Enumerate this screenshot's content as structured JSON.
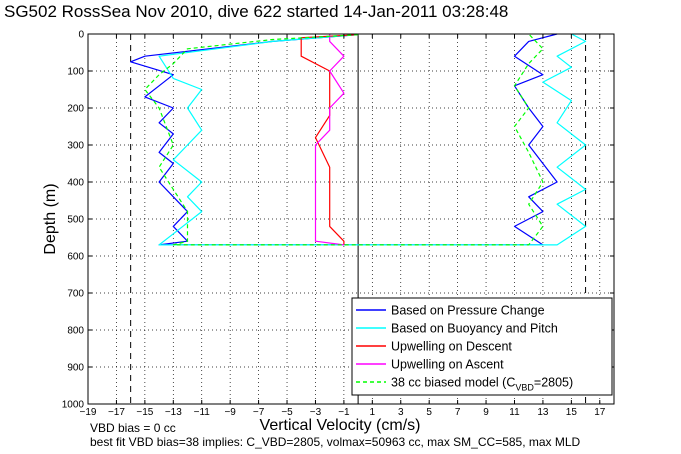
{
  "chart_data": {
    "type": "line",
    "title": "SG502 RossSea Nov 2010, dive 622 started 14-Jan-2011 03:28:48",
    "xlabel": "Vertical Velocity (cm/s)",
    "ylabel": "Depth (m)",
    "xlim": [
      -19,
      18
    ],
    "ylim": [
      0,
      1000
    ],
    "y_reversed": true,
    "grid": true,
    "x_ticks": [
      -19,
      -17,
      -15,
      -13,
      -11,
      -9,
      -7,
      -5,
      -3,
      -1,
      1,
      3,
      5,
      7,
      9,
      11,
      13,
      15,
      17
    ],
    "y_ticks": [
      0,
      100,
      200,
      300,
      400,
      500,
      600,
      700,
      800,
      900,
      1000
    ],
    "vertical_dashed_lines": [
      -16,
      16
    ],
    "vertical_solid_line": 0,
    "legend_position": "bottom-right",
    "legend": [
      {
        "label": "Based on Pressure Change",
        "color": "#0000ff",
        "style": "solid"
      },
      {
        "label": "Based on Buoyancy and Pitch",
        "color": "#00ffff",
        "style": "solid"
      },
      {
        "label": "Upwelling on Descent",
        "color": "#ff0000",
        "style": "solid"
      },
      {
        "label": "Upwelling on Ascent",
        "color": "#ff00ff",
        "style": "solid"
      },
      {
        "label_pre": "38 cc biased model (C",
        "label_sub": "VBD",
        "label_post": "=2805)",
        "color": "#00ff00",
        "style": "dashed"
      }
    ],
    "series": [
      {
        "name": "Based on Pressure Change",
        "color": "#0000ff",
        "points": [
          [
            0,
            2
          ],
          [
            -6,
            20
          ],
          [
            -15,
            60
          ],
          [
            -16,
            75
          ],
          [
            -13,
            110
          ],
          [
            -14,
            140
          ],
          [
            -15,
            170
          ],
          [
            -13,
            200
          ],
          [
            -14,
            240
          ],
          [
            -13,
            270
          ],
          [
            -14,
            320
          ],
          [
            -13,
            350
          ],
          [
            -14,
            400
          ],
          [
            -13,
            440
          ],
          [
            -12,
            480
          ],
          [
            -13,
            520
          ],
          [
            -12,
            560
          ],
          [
            -14,
            570
          ],
          [
            13,
            570
          ],
          [
            11,
            520
          ],
          [
            13,
            480
          ],
          [
            12,
            440
          ],
          [
            14,
            400
          ],
          [
            13,
            350
          ],
          [
            12,
            300
          ],
          [
            13,
            250
          ],
          [
            12,
            200
          ],
          [
            11,
            140
          ],
          [
            13,
            110
          ],
          [
            11,
            60
          ],
          [
            12,
            20
          ],
          [
            14,
            0
          ]
        ]
      },
      {
        "name": "Based on Buoyancy and Pitch",
        "color": "#00ffff",
        "points": [
          [
            0,
            2
          ],
          [
            -6,
            20
          ],
          [
            -14,
            60
          ],
          [
            -13,
            120
          ],
          [
            -11,
            150
          ],
          [
            -12,
            200
          ],
          [
            -11,
            260
          ],
          [
            -12,
            300
          ],
          [
            -13,
            340
          ],
          [
            -11,
            400
          ],
          [
            -12,
            440
          ],
          [
            -11,
            480
          ],
          [
            -13,
            540
          ],
          [
            -14,
            570
          ],
          [
            14,
            570
          ],
          [
            16,
            520
          ],
          [
            14,
            460
          ],
          [
            16,
            420
          ],
          [
            14,
            360
          ],
          [
            16,
            300
          ],
          [
            14,
            240
          ],
          [
            15,
            180
          ],
          [
            13,
            130
          ],
          [
            15,
            90
          ],
          [
            14,
            60
          ],
          [
            16,
            20
          ],
          [
            15,
            0
          ]
        ]
      },
      {
        "name": "Upwelling on Descent",
        "color": "#ff0000",
        "points": [
          [
            0,
            2
          ],
          [
            -4,
            10
          ],
          [
            -4,
            60
          ],
          [
            -2,
            100
          ],
          [
            -2,
            160
          ],
          [
            -2,
            220
          ],
          [
            -3,
            280
          ],
          [
            -2,
            360
          ],
          [
            -2,
            440
          ],
          [
            -2,
            520
          ],
          [
            -1,
            560
          ],
          [
            -1,
            570
          ]
        ]
      },
      {
        "name": "Upwelling on Ascent",
        "color": "#ff00ff",
        "points": [
          [
            -1,
            570
          ],
          [
            -3,
            560
          ],
          [
            -3,
            500
          ],
          [
            -3,
            440
          ],
          [
            -3,
            360
          ],
          [
            -3,
            300
          ],
          [
            -2,
            260
          ],
          [
            -2,
            200
          ],
          [
            -1,
            160
          ],
          [
            -2,
            100
          ],
          [
            -1,
            60
          ],
          [
            -2,
            20
          ],
          [
            -2,
            0
          ]
        ]
      },
      {
        "name": "38 cc biased model (CVBD=2805)",
        "color": "#00ff00",
        "dashed": true,
        "points": [
          [
            0,
            2
          ],
          [
            -6,
            15
          ],
          [
            -12,
            40
          ],
          [
            -13,
            80
          ],
          [
            -14,
            110
          ],
          [
            -15,
            150
          ],
          [
            -14,
            200
          ],
          [
            -13,
            300
          ],
          [
            -14,
            360
          ],
          [
            -13,
            420
          ],
          [
            -12,
            480
          ],
          [
            -12,
            560
          ],
          [
            -13,
            570
          ],
          [
            12,
            570
          ],
          [
            13,
            520
          ],
          [
            12,
            460
          ],
          [
            13,
            400
          ],
          [
            12,
            320
          ],
          [
            11,
            250
          ],
          [
            12,
            200
          ],
          [
            11,
            140
          ],
          [
            12,
            80
          ],
          [
            13,
            40
          ],
          [
            12,
            0
          ]
        ]
      }
    ]
  },
  "footer": {
    "line1": "VBD bias = 0 cc",
    "line2": "best fit VBD bias=38 implies: C_VBD=2805, volmax=50963 cc, max SM_CC=585, max MLD"
  }
}
